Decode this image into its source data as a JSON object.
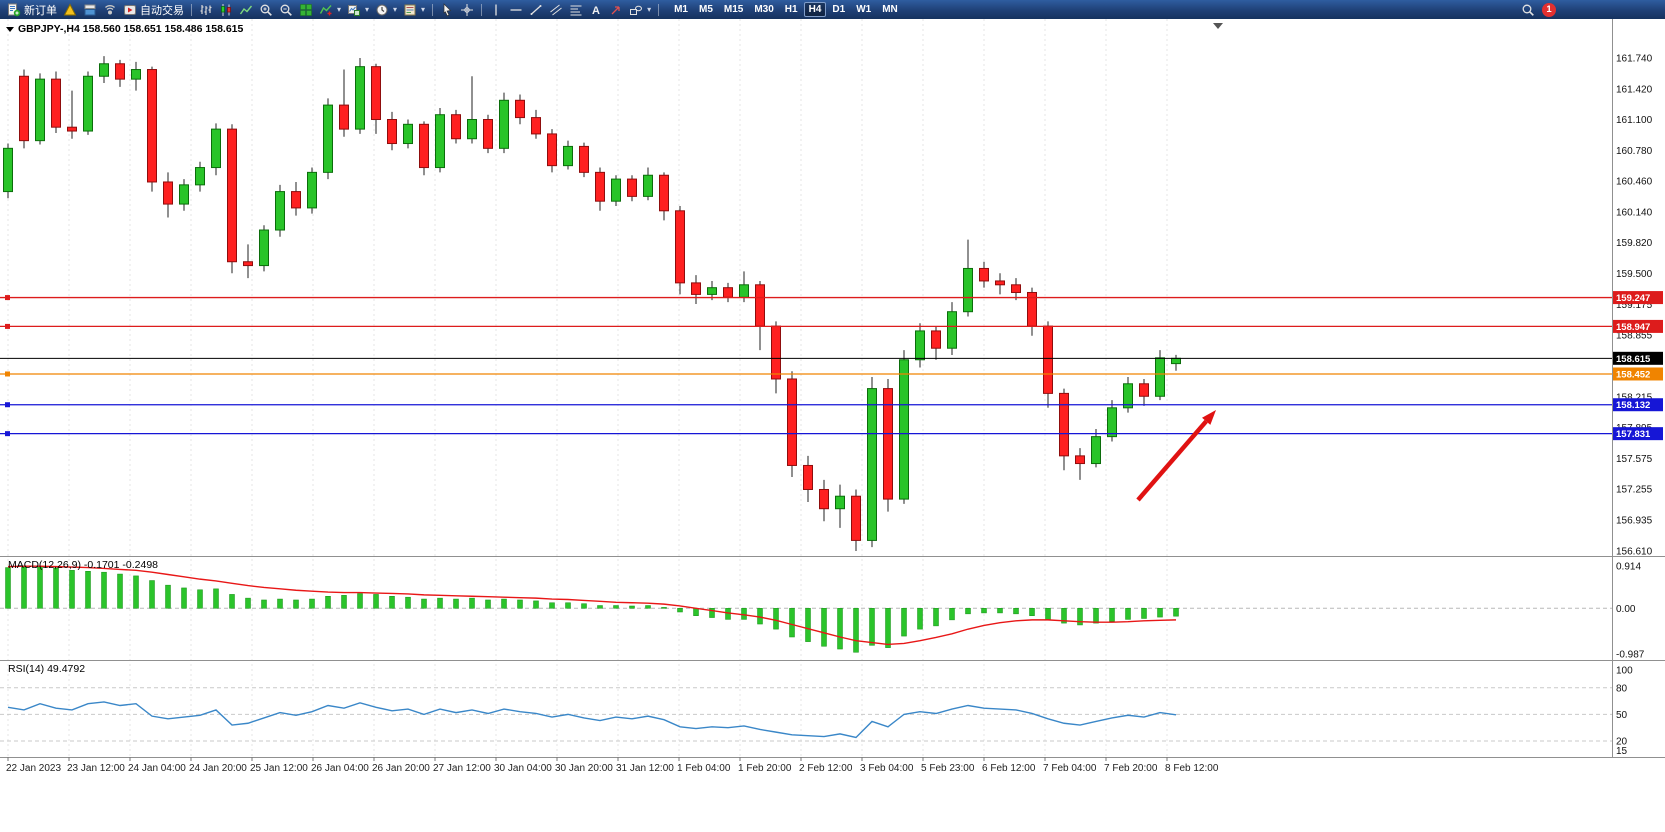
{
  "colors": {
    "candle_up": "#29c429",
    "candle_up_border": "#0b6d0b",
    "candle_down": "#fe2020",
    "candle_down_border": "#8f0d0d",
    "macd_histogram": "#2bc42b",
    "macd_signal": "#e81717",
    "rsi_line": "#3a87c8",
    "arrow": "#e01212",
    "level_red": "#dd1c1c",
    "level_orange": "#f08400",
    "level_blue": "#1616d6",
    "current_price_black": "#000000"
  },
  "toolbar": {
    "items": [
      {
        "kind": "button",
        "name": "new-order-button",
        "icon": "new-order-icon",
        "label": "新订单"
      },
      {
        "kind": "icon",
        "name": "editor-icon"
      },
      {
        "kind": "icon",
        "name": "market-icon"
      },
      {
        "kind": "icon",
        "name": "signals-icon"
      },
      {
        "kind": "button",
        "name": "autotrade-button",
        "icon": "autotrade-icon",
        "label": "自动交易"
      },
      {
        "kind": "sep"
      },
      {
        "kind": "icon",
        "name": "bar-chart-icon"
      },
      {
        "kind": "icon",
        "name": "candlestick-chart-icon"
      },
      {
        "kind": "icon",
        "name": "line-chart-icon"
      },
      {
        "kind": "icon",
        "name": "zoom-in-icon"
      },
      {
        "kind": "icon",
        "name": "zoom-out-icon"
      },
      {
        "kind": "icon",
        "name": "tile-windows-icon"
      },
      {
        "kind": "icon",
        "name": "indicators-icon",
        "dropdown": true
      },
      {
        "kind": "icon",
        "name": "add-chart-icon",
        "dropdown": true
      },
      {
        "kind": "icon",
        "name": "periods-icon",
        "dropdown": true
      },
      {
        "kind": "icon",
        "name": "templates-icon",
        "dropdown": true
      },
      {
        "kind": "sep"
      },
      {
        "kind": "icon",
        "name": "cursor-icon"
      },
      {
        "kind": "icon",
        "name": "crosshair-icon"
      },
      {
        "kind": "sep"
      },
      {
        "kind": "icon",
        "name": "vertical-line-icon"
      },
      {
        "kind": "icon",
        "name": "horizontal-line-icon"
      },
      {
        "kind": "icon",
        "name": "trendline-icon"
      },
      {
        "kind": "icon",
        "name": "channel-icon"
      },
      {
        "kind": "icon",
        "name": "fibonacci-icon"
      },
      {
        "kind": "icon",
        "name": "text-label-icon"
      },
      {
        "kind": "icon",
        "name": "arrow-object-icon"
      },
      {
        "kind": "icon",
        "name": "shapes-icon",
        "dropdown": true
      },
      {
        "kind": "sep"
      }
    ],
    "timeframes": [
      "M1",
      "M5",
      "M15",
      "M30",
      "H1",
      "H4",
      "D1",
      "W1",
      "MN"
    ],
    "active_timeframe": "H4",
    "right": [
      {
        "kind": "icon",
        "name": "search-icon"
      },
      {
        "kind": "badge",
        "name": "notification-badge",
        "label": "1"
      }
    ]
  },
  "chart": {
    "symbol": "GBPJPY-",
    "timeframe": "H4",
    "title_line": "GBPJPY-,H4 158.560 158.651 158.486 158.615"
  },
  "panes": {
    "macd_label": "MACD(12,26,9) -0.1701 -0.2498",
    "rsi_label": "RSI(14) 49.4792"
  },
  "chart_data": {
    "type": "candlestick",
    "symbol": "GBPJPY-",
    "timeframe": "H4",
    "ohlc_current": {
      "open": 158.56,
      "high": 158.651,
      "low": 158.486,
      "close": 158.615
    },
    "scale": {
      "price_max": 161.74,
      "price_min": 156.61
    },
    "price_ticks": [
      "161.740",
      "161.420",
      "161.100",
      "160.780",
      "160.460",
      "160.140",
      "159.820",
      "159.500",
      "159.175",
      "158.855",
      "158.215",
      "157.895",
      "157.575",
      "157.255",
      "156.935",
      "156.610"
    ],
    "x_labels": [
      "22 Jan 2023",
      "23 Jan 12:00",
      "24 Jan 04:00",
      "24 Jan 20:00",
      "25 Jan 12:00",
      "26 Jan 04:00",
      "26 Jan 20:00",
      "27 Jan 12:00",
      "30 Jan 04:00",
      "30 Jan 20:00",
      "31 Jan 12:00",
      "1 Feb 04:00",
      "1 Feb 20:00",
      "2 Feb 12:00",
      "3 Feb 04:00",
      "5 Feb 23:00",
      "6 Feb 12:00",
      "7 Feb 04:00",
      "7 Feb 20:00",
      "8 Feb 12:00"
    ],
    "levels": [
      {
        "price": 159.247,
        "color": "#dd1c1c",
        "kind": "resistance"
      },
      {
        "price": 158.947,
        "color": "#dd1c1c",
        "kind": "resistance"
      },
      {
        "price": 158.615,
        "color": "#000000",
        "kind": "current"
      },
      {
        "price": 158.452,
        "color": "#f08400",
        "kind": "pivot"
      },
      {
        "price": 158.132,
        "color": "#1616d6",
        "kind": "support"
      },
      {
        "price": 157.831,
        "color": "#1616d6",
        "kind": "support"
      }
    ],
    "arrow": {
      "from": [
        1138,
        481
      ],
      "to": [
        1216,
        391
      ],
      "color": "#e01212"
    },
    "candles": [
      [
        160.35,
        160.85,
        160.28,
        160.8
      ],
      [
        161.55,
        161.62,
        160.8,
        160.88
      ],
      [
        160.88,
        161.58,
        160.84,
        161.52
      ],
      [
        161.52,
        161.6,
        160.96,
        161.02
      ],
      [
        161.02,
        161.4,
        160.9,
        160.98
      ],
      [
        160.98,
        161.6,
        160.94,
        161.55
      ],
      [
        161.55,
        161.76,
        161.48,
        161.68
      ],
      [
        161.68,
        161.72,
        161.44,
        161.52
      ],
      [
        161.52,
        161.7,
        161.4,
        161.62
      ],
      [
        161.62,
        161.65,
        160.35,
        160.45
      ],
      [
        160.45,
        160.55,
        160.08,
        160.22
      ],
      [
        160.22,
        160.48,
        160.15,
        160.42
      ],
      [
        160.42,
        160.66,
        160.35,
        160.6
      ],
      [
        160.6,
        161.06,
        160.52,
        161.0
      ],
      [
        161.0,
        161.05,
        159.5,
        159.62
      ],
      [
        159.62,
        159.8,
        159.45,
        159.58
      ],
      [
        159.58,
        160.0,
        159.52,
        159.95
      ],
      [
        159.95,
        160.42,
        159.88,
        160.35
      ],
      [
        160.35,
        160.45,
        160.1,
        160.18
      ],
      [
        160.18,
        160.6,
        160.12,
        160.55
      ],
      [
        160.55,
        161.32,
        160.48,
        161.25
      ],
      [
        161.25,
        161.62,
        160.92,
        161.0
      ],
      [
        161.0,
        161.74,
        160.95,
        161.65
      ],
      [
        161.65,
        161.68,
        160.95,
        161.1
      ],
      [
        161.1,
        161.18,
        160.78,
        160.85
      ],
      [
        160.85,
        161.1,
        160.8,
        161.05
      ],
      [
        161.05,
        161.08,
        160.52,
        160.6
      ],
      [
        160.6,
        161.22,
        160.55,
        161.15
      ],
      [
        161.15,
        161.2,
        160.85,
        160.9
      ],
      [
        160.9,
        161.55,
        160.85,
        161.1
      ],
      [
        161.1,
        161.15,
        160.75,
        160.8
      ],
      [
        160.8,
        161.38,
        160.75,
        161.3
      ],
      [
        161.3,
        161.36,
        161.05,
        161.12
      ],
      [
        161.12,
        161.2,
        160.9,
        160.95
      ],
      [
        160.95,
        161.0,
        160.55,
        160.62
      ],
      [
        160.62,
        160.88,
        160.58,
        160.82
      ],
      [
        160.82,
        160.86,
        160.5,
        160.55
      ],
      [
        160.55,
        160.6,
        160.15,
        160.25
      ],
      [
        160.25,
        160.52,
        160.2,
        160.48
      ],
      [
        160.48,
        160.52,
        160.25,
        160.3
      ],
      [
        160.3,
        160.6,
        160.26,
        160.52
      ],
      [
        160.52,
        160.55,
        160.05,
        160.15
      ],
      [
        160.15,
        160.2,
        159.28,
        159.4
      ],
      [
        159.4,
        159.48,
        159.18,
        159.28
      ],
      [
        159.28,
        159.42,
        159.22,
        159.35
      ],
      [
        159.35,
        159.4,
        159.2,
        159.25
      ],
      [
        159.25,
        159.52,
        159.2,
        159.38
      ],
      [
        159.38,
        159.42,
        158.7,
        158.95
      ],
      [
        158.95,
        159.0,
        158.25,
        158.4
      ],
      [
        158.4,
        158.48,
        157.38,
        157.5
      ],
      [
        157.5,
        157.6,
        157.12,
        157.25
      ],
      [
        157.25,
        157.35,
        156.92,
        157.05
      ],
      [
        157.05,
        157.3,
        156.85,
        157.18
      ],
      [
        157.18,
        157.25,
        156.61,
        156.72
      ],
      [
        156.72,
        158.42,
        156.65,
        158.3
      ],
      [
        158.3,
        158.4,
        157.02,
        157.15
      ],
      [
        157.15,
        158.7,
        157.1,
        158.6
      ],
      [
        158.6,
        158.98,
        158.52,
        158.9
      ],
      [
        158.9,
        158.95,
        158.6,
        158.72
      ],
      [
        158.72,
        159.2,
        158.65,
        159.1
      ],
      [
        159.1,
        159.85,
        159.05,
        159.55
      ],
      [
        159.55,
        159.62,
        159.35,
        159.42
      ],
      [
        159.42,
        159.5,
        159.28,
        159.38
      ],
      [
        159.38,
        159.45,
        159.22,
        159.3
      ],
      [
        159.3,
        159.35,
        158.85,
        158.95
      ],
      [
        158.95,
        159.0,
        158.1,
        158.25
      ],
      [
        158.25,
        158.3,
        157.45,
        157.6
      ],
      [
        157.6,
        157.68,
        157.35,
        157.52
      ],
      [
        157.52,
        157.88,
        157.48,
        157.8
      ],
      [
        157.8,
        158.18,
        157.75,
        158.1
      ],
      [
        158.1,
        158.42,
        158.05,
        158.35
      ],
      [
        158.35,
        158.4,
        158.12,
        158.22
      ],
      [
        158.22,
        158.7,
        158.18,
        158.62
      ],
      [
        158.56,
        158.651,
        158.486,
        158.615
      ]
    ],
    "indicators": {
      "macd": {
        "label": "MACD(12,26,9)",
        "value": -0.1701,
        "signal_value": -0.2498,
        "scale_max": 0.914,
        "scale_min": -0.987,
        "histogram": [
          0.88,
          0.9,
          0.91,
          0.87,
          0.82,
          0.8,
          0.78,
          0.74,
          0.7,
          0.6,
          0.5,
          0.44,
          0.4,
          0.42,
          0.3,
          0.22,
          0.18,
          0.2,
          0.18,
          0.2,
          0.26,
          0.28,
          0.32,
          0.3,
          0.26,
          0.24,
          0.2,
          0.22,
          0.2,
          0.22,
          0.18,
          0.2,
          0.18,
          0.16,
          0.12,
          0.12,
          0.1,
          0.06,
          0.06,
          0.05,
          0.06,
          0.02,
          -0.08,
          -0.16,
          -0.2,
          -0.24,
          -0.24,
          -0.34,
          -0.45,
          -0.62,
          -0.72,
          -0.82,
          -0.88,
          -0.95,
          -0.8,
          -0.85,
          -0.6,
          -0.45,
          -0.38,
          -0.25,
          -0.12,
          -0.1,
          -0.1,
          -0.12,
          -0.16,
          -0.24,
          -0.32,
          -0.36,
          -0.32,
          -0.28,
          -0.24,
          -0.22,
          -0.19,
          -0.17
        ],
        "signal": [
          0.9,
          0.91,
          0.91,
          0.9,
          0.89,
          0.88,
          0.86,
          0.84,
          0.82,
          0.78,
          0.73,
          0.68,
          0.63,
          0.59,
          0.54,
          0.49,
          0.45,
          0.42,
          0.39,
          0.37,
          0.35,
          0.34,
          0.34,
          0.33,
          0.32,
          0.31,
          0.29,
          0.28,
          0.27,
          0.26,
          0.25,
          0.24,
          0.23,
          0.22,
          0.2,
          0.19,
          0.17,
          0.15,
          0.13,
          0.12,
          0.11,
          0.09,
          0.05,
          0.0,
          -0.05,
          -0.1,
          -0.14,
          -0.19,
          -0.26,
          -0.35,
          -0.44,
          -0.53,
          -0.62,
          -0.7,
          -0.74,
          -0.78,
          -0.76,
          -0.7,
          -0.63,
          -0.55,
          -0.45,
          -0.37,
          -0.31,
          -0.27,
          -0.25,
          -0.25,
          -0.27,
          -0.29,
          -0.3,
          -0.3,
          -0.29,
          -0.27,
          -0.26,
          -0.25
        ]
      },
      "rsi": {
        "label": "RSI(14)",
        "value": 49.4792,
        "levels": [
          80,
          50,
          20
        ],
        "scale_labels": [
          "100",
          "80",
          "50",
          "20",
          "15"
        ],
        "series": [
          58,
          55,
          62,
          57,
          55,
          62,
          64,
          60,
          62,
          48,
          45,
          47,
          49,
          55,
          38,
          40,
          46,
          52,
          49,
          53,
          60,
          57,
          63,
          58,
          54,
          56,
          50,
          56,
          52,
          55,
          51,
          56,
          53,
          51,
          47,
          50,
          46,
          43,
          47,
          45,
          48,
          44,
          36,
          34,
          36,
          35,
          37,
          33,
          30,
          27,
          26,
          25,
          28,
          24,
          42,
          36,
          50,
          53,
          51,
          56,
          60,
          57,
          56,
          55,
          51,
          45,
          40,
          38,
          42,
          46,
          49,
          47,
          52,
          49.5
        ]
      }
    }
  }
}
